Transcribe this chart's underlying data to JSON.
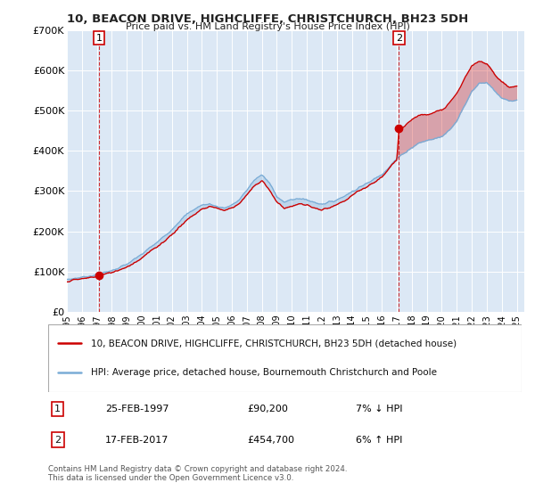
{
  "title": "10, BEACON DRIVE, HIGHCLIFFE, CHRISTCHURCH, BH23 5DH",
  "subtitle": "Price paid vs. HM Land Registry's House Price Index (HPI)",
  "legend_line1": "10, BEACON DRIVE, HIGHCLIFFE, CHRISTCHURCH, BH23 5DH (detached house)",
  "legend_line2": "HPI: Average price, detached house, Bournemouth Christchurch and Poole",
  "footnote": "Contains HM Land Registry data © Crown copyright and database right 2024.\nThis data is licensed under the Open Government Licence v3.0.",
  "marker1_label": "1",
  "marker1_date": "25-FEB-1997",
  "marker1_price": "£90,200",
  "marker1_hpi": "7% ↓ HPI",
  "marker1_x": 1997.14,
  "marker1_y": 90200,
  "marker2_label": "2",
  "marker2_date": "17-FEB-2017",
  "marker2_price": "£454,700",
  "marker2_hpi": "6% ↑ HPI",
  "marker2_x": 2017.14,
  "marker2_y": 454700,
  "sale_color": "#cc0000",
  "hpi_color": "#7aacd6",
  "background_color": "#dce8f5",
  "ylim": [
    0,
    700000
  ],
  "xlim_start": 1995.0,
  "xlim_end": 2025.5,
  "yticks": [
    0,
    100000,
    200000,
    300000,
    400000,
    500000,
    600000,
    700000
  ],
  "ylabels": [
    "£0",
    "£100K",
    "£200K",
    "£300K",
    "£400K",
    "£500K",
    "£600K",
    "£700K"
  ],
  "xtick_start": 1995,
  "xtick_end": 2025
}
